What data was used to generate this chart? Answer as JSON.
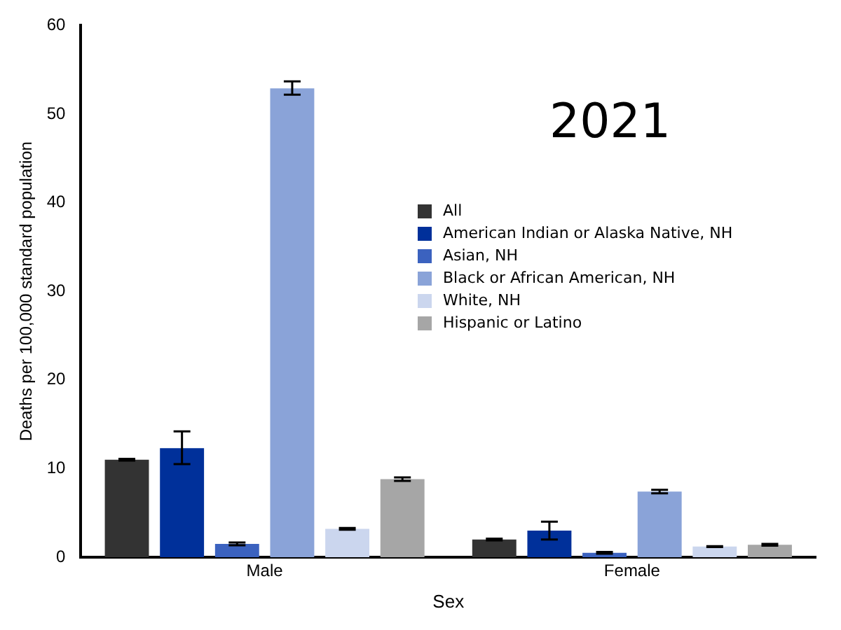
{
  "chart_data": {
    "type": "bar",
    "xlabel": "Sex",
    "ylabel": "Deaths per 100,000 standard population",
    "categories": [
      "Male",
      "Female"
    ],
    "series": [
      {
        "name": "All",
        "color": "#333333",
        "values": [
          11.0,
          2.0
        ],
        "errors": [
          0.1,
          0.1
        ]
      },
      {
        "name": "American Indian or Alaska Native, NH",
        "color": "#00309a",
        "values": [
          12.3,
          3.0
        ],
        "errors": [
          [
            10.5,
            14.2
          ],
          [
            2.0,
            4.0
          ]
        ]
      },
      {
        "name": "Asian, NH",
        "color": "#3b62bf",
        "values": [
          1.5,
          0.5
        ],
        "errors": [
          0.15,
          0.1
        ]
      },
      {
        "name": "Black or African American, NH",
        "color": "#8aa3d8",
        "values": [
          52.9,
          7.4
        ],
        "errors": [
          [
            52.2,
            53.7
          ],
          [
            7.2,
            7.6
          ]
        ]
      },
      {
        "name": "White, NH",
        "color": "#cbd6ee",
        "values": [
          3.2,
          1.2
        ],
        "errors": [
          0.1,
          0.05
        ]
      },
      {
        "name": "Hispanic or Latino",
        "color": "#a6a6a6",
        "values": [
          8.8,
          1.4
        ],
        "errors": [
          0.2,
          0.1
        ]
      }
    ],
    "ylim": [
      0,
      60
    ],
    "yticks": [
      0,
      10,
      20,
      30,
      40,
      50,
      60
    ],
    "grid": false,
    "legend": "right",
    "annotations": [
      "2021"
    ]
  }
}
